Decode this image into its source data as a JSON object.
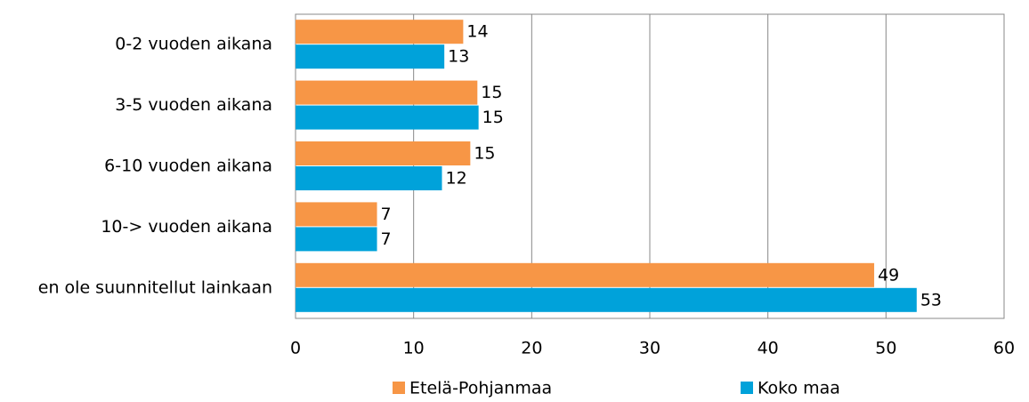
{
  "chart_data": {
    "type": "hbar",
    "categories": [
      "0-2 vuoden aikana",
      "3-5 vuoden aikana",
      "6-10 vuoden aikana",
      "10-> vuoden aikana",
      "en ole suunnitellut lainkaan"
    ],
    "series": [
      {
        "name": "Etelä-Pohjanmaa",
        "color": "#f79646",
        "values": [
          14.2,
          15.4,
          14.8,
          6.9,
          49.0
        ],
        "value_labels": [
          "14",
          "15",
          "15",
          "7",
          "49"
        ]
      },
      {
        "name": "Koko maa",
        "color": "#00a2da",
        "values": [
          12.6,
          15.5,
          12.4,
          6.9,
          52.6
        ],
        "value_labels": [
          "13",
          "15",
          "12",
          "7",
          "53"
        ]
      }
    ],
    "xlim": [
      0,
      60
    ],
    "xticks": [
      0,
      10,
      20,
      30,
      40,
      50,
      60
    ],
    "grid": true,
    "legend": "bottom"
  }
}
